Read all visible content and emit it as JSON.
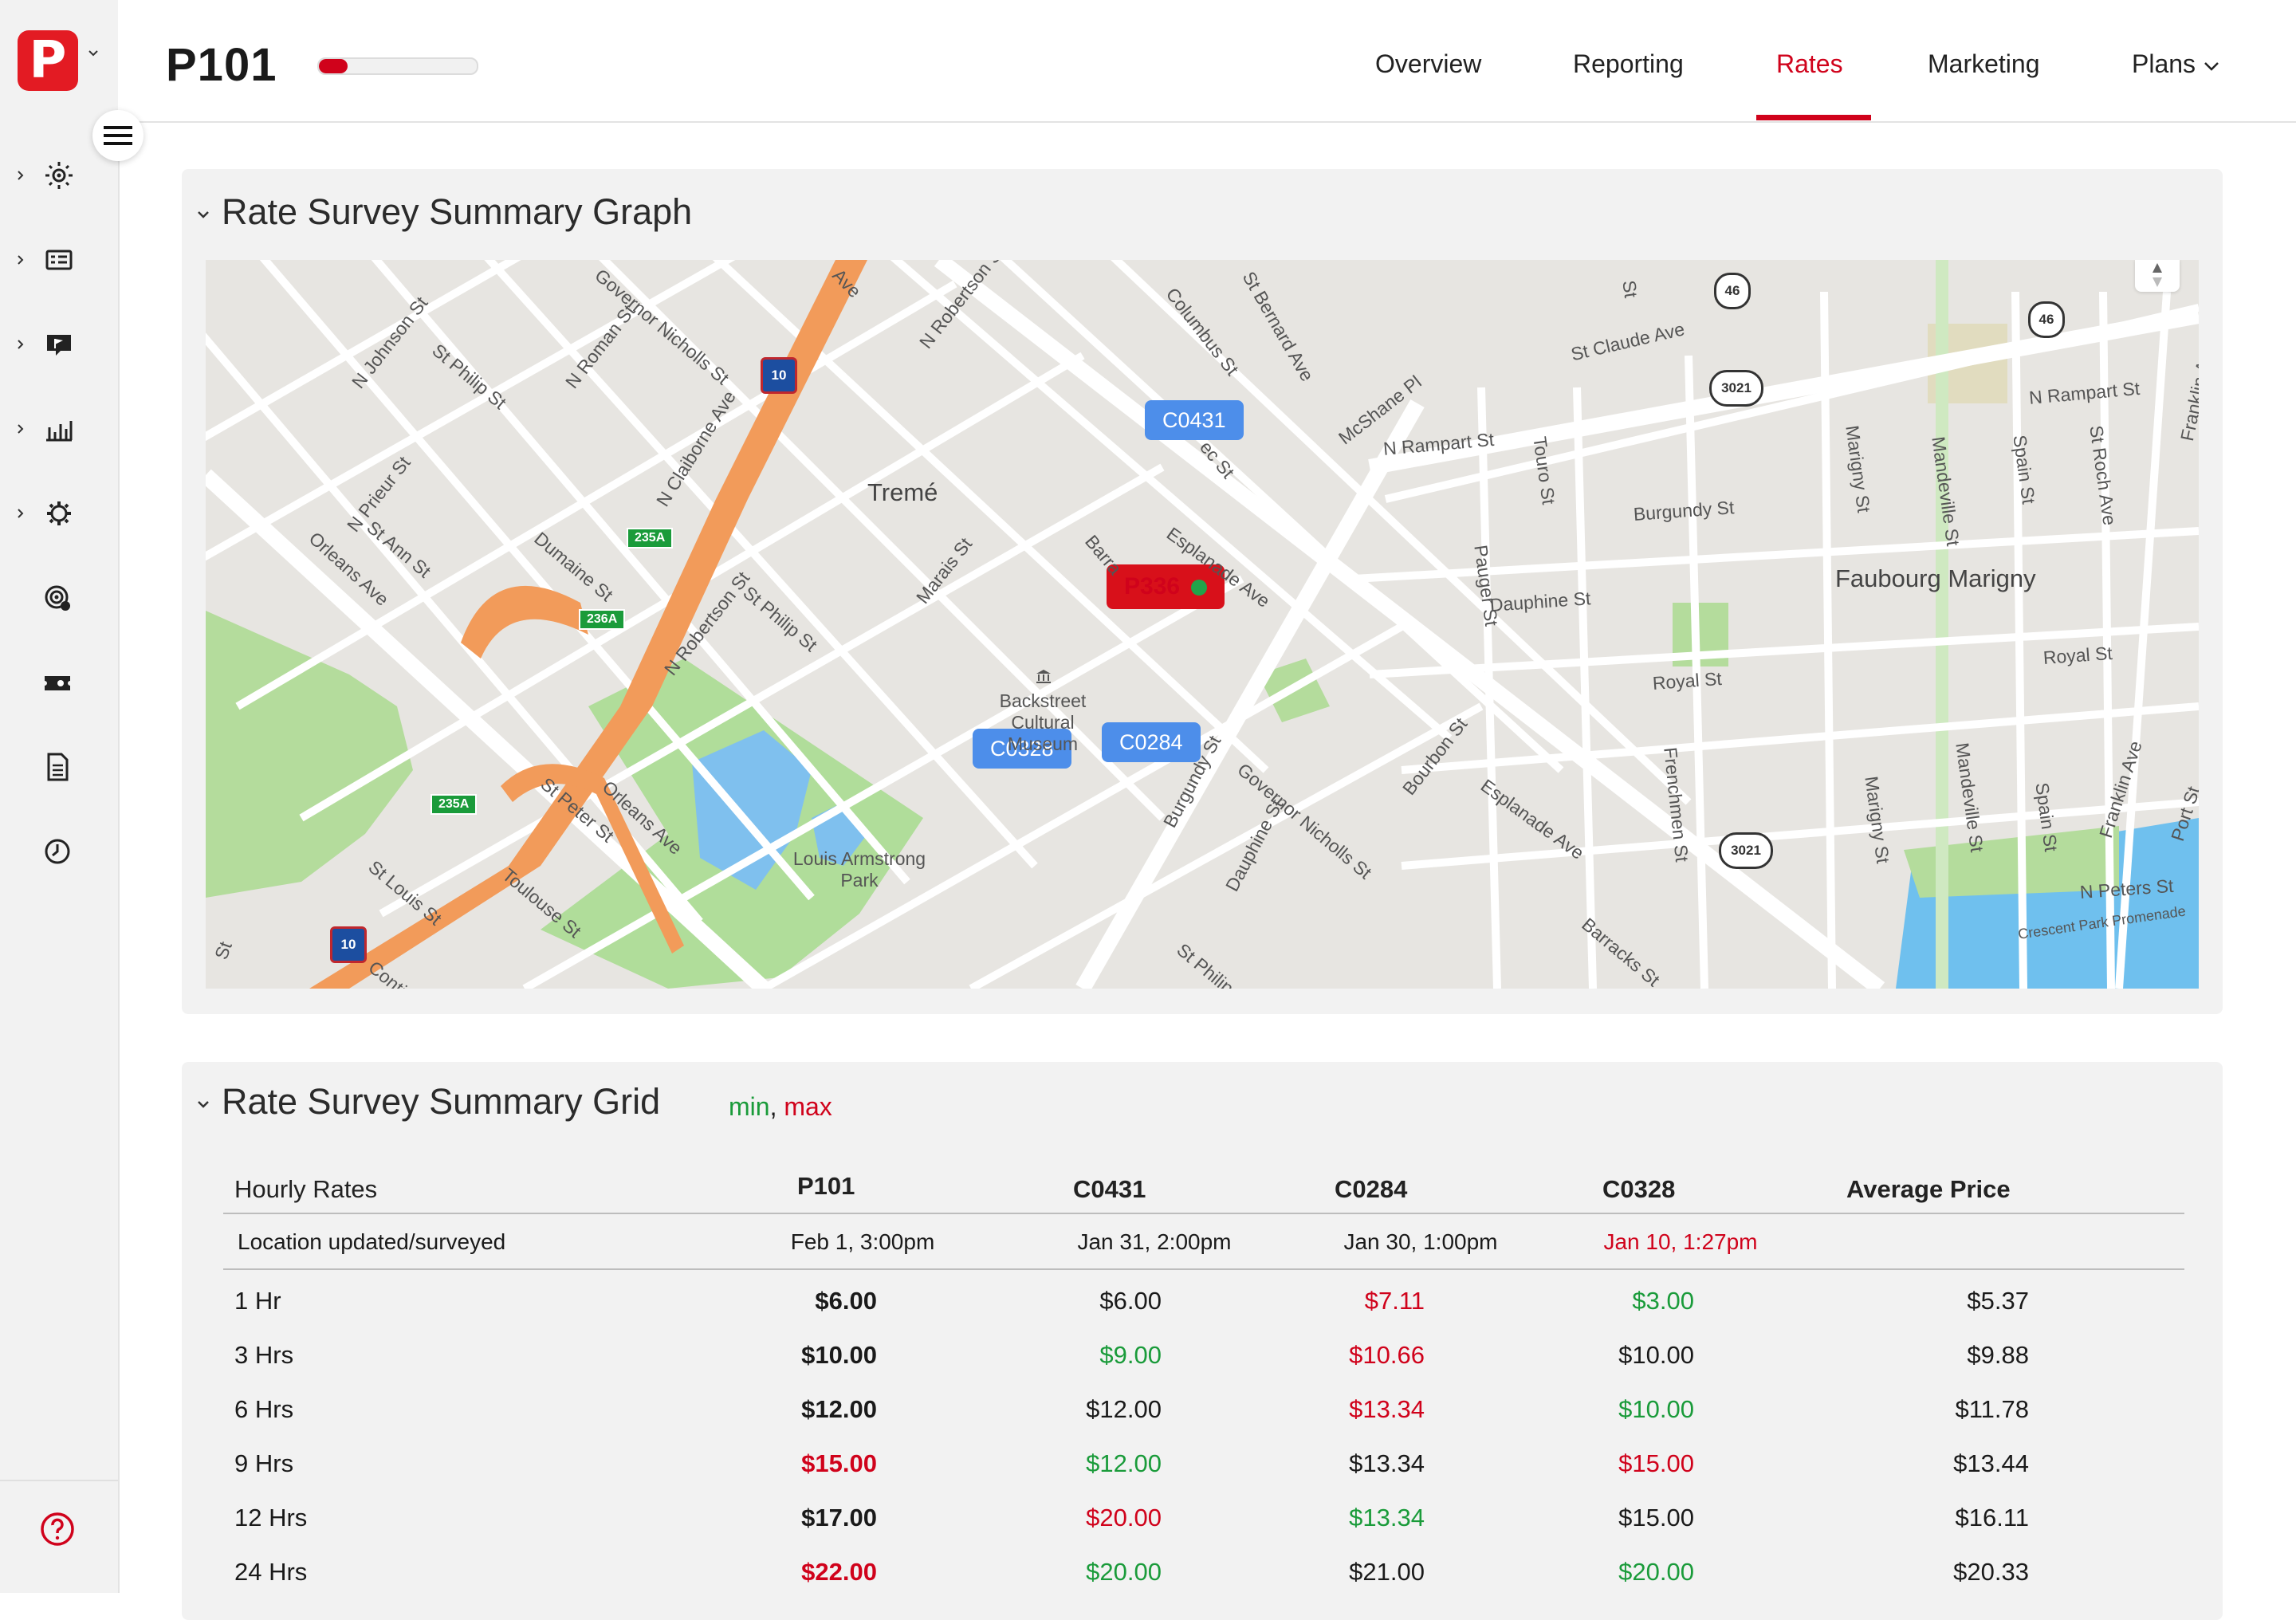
{
  "header": {
    "title": "P101",
    "progress_fraction": 0.18,
    "nav": [
      "Overview",
      "Reporting",
      "Rates",
      "Marketing",
      "Plans"
    ],
    "active_nav": "Rates"
  },
  "sidebar": {
    "icons": [
      "sun-icon",
      "id-card-icon",
      "chat-flag-icon",
      "bar-chart-icon",
      "gear-icon",
      "target-icon",
      "ticket-icon",
      "document-icon",
      "clock-icon"
    ],
    "help_icon": "help-circle-icon"
  },
  "map_panel": {
    "title": "Rate Survey Summary Graph",
    "pins": [
      {
        "label": "C0431",
        "type": "competitor"
      },
      {
        "label": "P336",
        "type": "own"
      },
      {
        "label": "C0328",
        "type": "competitor"
      },
      {
        "label": "C0284",
        "type": "competitor"
      }
    ],
    "labels": {
      "treme": "Tremé",
      "faubourg": "Faubourg Marigny",
      "museum": "Backstreet Cultural Museum",
      "park": "Louis Armstrong Park",
      "st_claude": "St Claude Ave",
      "n_rampart": "N Rampart St",
      "n_rampart2": "N Rampart St",
      "burgundy": "Burgundy St",
      "dauphine": "Dauphine St",
      "royal": "Royal St",
      "royal2": "Royal St",
      "esplanade": "Esplanade Ave",
      "esplanade2": "Esplanade Ave",
      "n_claiborne": "N Claiborne Ave",
      "orleans": "Orleans Ave",
      "orleans2": "Orleans Ave",
      "mcshane": "McShane Pl",
      "n_peters": "N Peters St",
      "crescent": "Crescent Park Promenade",
      "st_bernard": "St Bernard Ave",
      "columbus": "Columbus St",
      "n_robertson": "N Robertson St",
      "n_robertson2": "N Robertson St",
      "governor": "Governor Nicholls St",
      "governor2": "Governor Nicholls St",
      "st_philip": "St Philip St",
      "st_philip2": "St Philip St",
      "st_philip3": "St Philip St",
      "n_johnson": "N Johnson St",
      "n_roman": "N Roman St",
      "n_prieur": "N Prieur St",
      "st_ann": "St Ann St",
      "dumaine": "Dumaine St",
      "marais": "Marais St",
      "st_peter": "St Peter St",
      "toulouse": "Toulouse St",
      "st_louis": "St Louis St",
      "touro": "Touro St",
      "pauger": "Pauger St",
      "marigny": "Marigny St",
      "marigny2": "Marigny St",
      "mandeville": "Mandeville St",
      "mandeville2": "Mandeville St",
      "spain": "Spain St",
      "spain2": "Spain St",
      "st_roch": "St Roch Ave",
      "franklin": "Franklin Ave",
      "franklin2": "Franklin Ave",
      "frenchmen": "Frenchmen St",
      "bourbon": "Bourbon St",
      "dauphine2": "Dauphine St",
      "burgundy2": "Burgundy St",
      "barracks": "Barracks St",
      "port": "Port St",
      "barra": "Barra",
      "ec_st": "ec St",
      "conti": "Conti",
      "st_frag": "St",
      "ave_frag": "Ave",
      "st_frag2": "St"
    },
    "shields": [
      "46",
      "46",
      "3021",
      "3021",
      "10",
      "10"
    ],
    "exits": [
      "235A",
      "236A",
      "235A"
    ]
  },
  "grid_panel": {
    "title": "Rate Survey Summary Grid",
    "legend_min": "min",
    "legend_sep": ",",
    "legend_max": "max",
    "headers": [
      "Hourly Rates",
      "P101",
      "C0431",
      "C0284",
      "C0328",
      "Average Price"
    ],
    "updated_row": {
      "label": "Location updated/surveyed",
      "values": [
        "Feb 1, 3:00pm",
        "Jan 31, 2:00pm",
        "Jan 30, 1:00pm",
        "Jan 10, 1:27pm"
      ],
      "stale_index": 3
    },
    "rows": [
      {
        "label": "1 Hr",
        "values": [
          "$6.00",
          "$6.00",
          "$7.11",
          "$3.00",
          "$5.37"
        ],
        "flags": [
          "",
          "",
          "max",
          "min",
          ""
        ]
      },
      {
        "label": "3 Hrs",
        "values": [
          "$10.00",
          "$9.00",
          "$10.66",
          "$10.00",
          "$9.88"
        ],
        "flags": [
          "",
          "min",
          "max",
          "",
          ""
        ]
      },
      {
        "label": "6 Hrs",
        "values": [
          "$12.00",
          "$12.00",
          "$13.34",
          "$10.00",
          "$11.78"
        ],
        "flags": [
          "",
          "",
          "max",
          "min",
          ""
        ]
      },
      {
        "label": "9 Hrs",
        "values": [
          "$15.00",
          "$12.00",
          "$13.34",
          "$15.00",
          "$13.44"
        ],
        "flags": [
          "max",
          "min",
          "",
          "max",
          ""
        ]
      },
      {
        "label": "12 Hrs",
        "values": [
          "$17.00",
          "$20.00",
          "$13.34",
          "$15.00",
          "$16.11"
        ],
        "flags": [
          "",
          "max",
          "min",
          "",
          ""
        ]
      },
      {
        "label": "24 Hrs",
        "values": [
          "$22.00",
          "$20.00",
          "$21.00",
          "$20.00",
          "$20.33"
        ],
        "flags": [
          "max",
          "min",
          "",
          "min",
          ""
        ]
      }
    ]
  }
}
